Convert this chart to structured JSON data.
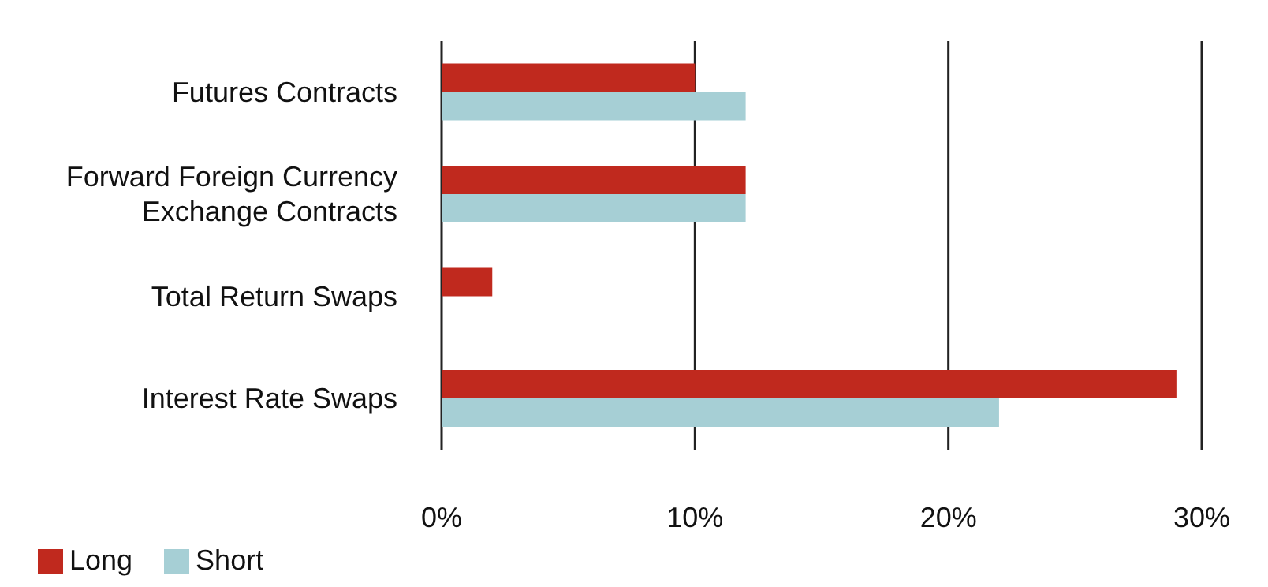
{
  "chart_data": {
    "type": "bar",
    "orientation": "horizontal",
    "categories": [
      "Futures Contracts",
      "Forward Foreign Currency Exchange Contracts",
      "Total Return Swaps",
      "Interest Rate Swaps"
    ],
    "series": [
      {
        "name": "Long",
        "color": "#c0291e",
        "values": [
          10,
          12,
          2,
          29
        ]
      },
      {
        "name": "Short",
        "color": "#a6cfd5",
        "values": [
          12,
          12,
          null,
          22
        ]
      }
    ],
    "xlim": [
      0,
      30
    ],
    "xticks": [
      {
        "value": 0,
        "label": "0%"
      },
      {
        "value": 10,
        "label": "10%"
      },
      {
        "value": 20,
        "label": "20%"
      },
      {
        "value": 30,
        "label": "30%"
      }
    ],
    "grid": "x",
    "legend": "bottom left"
  }
}
